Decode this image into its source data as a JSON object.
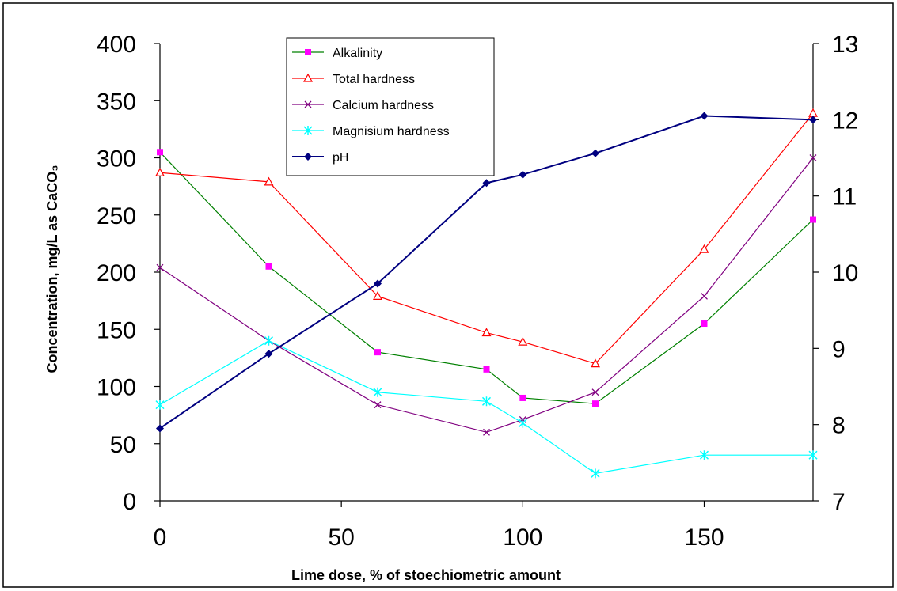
{
  "chart_data": {
    "type": "line",
    "xlabel": "Lime dose, % of stoechiometric amount",
    "ylabel": "Concentration, mg/L as CaCO₃",
    "xlim": [
      0,
      180
    ],
    "x_ticks": [
      "0",
      "50",
      "100",
      "150"
    ],
    "ylim": [
      0,
      400
    ],
    "y_ticks": [
      "0",
      "50",
      "100",
      "150",
      "200",
      "250",
      "300",
      "350",
      "400"
    ],
    "y2lim": [
      7,
      13
    ],
    "y2_ticks": [
      "7",
      "8",
      "9",
      "10",
      "11",
      "12",
      "13"
    ],
    "legend_position": "top-center",
    "grid": false,
    "series": [
      {
        "name": "Alkalinity",
        "axis": "left",
        "color": "#008000",
        "marker": "square",
        "marker_color": "#ff00ff",
        "x": [
          0,
          30,
          60,
          90,
          100,
          120,
          150,
          180
        ],
        "values": [
          305,
          205,
          130,
          115,
          90,
          85,
          155,
          246
        ]
      },
      {
        "name": "Total hardness",
        "axis": "left",
        "color": "#ff0000",
        "marker": "triangle",
        "marker_color": "#ff0000",
        "x": [
          0,
          30,
          60,
          90,
          100,
          120,
          150,
          180
        ],
        "values": [
          287,
          279,
          179,
          147,
          139,
          120,
          220,
          339
        ]
      },
      {
        "name": "Calcium hardness",
        "axis": "left",
        "color": "#800080",
        "marker": "x",
        "marker_color": "#800080",
        "x": [
          0,
          30,
          60,
          90,
          100,
          120,
          150,
          180
        ],
        "values": [
          204,
          140,
          84,
          60,
          71,
          95,
          179,
          300
        ]
      },
      {
        "name": "Magnisium hardness",
        "axis": "left",
        "color": "#00ffff",
        "marker": "asterisk",
        "marker_color": "#00ffff",
        "x": [
          0,
          30,
          60,
          90,
          100,
          120,
          150,
          180
        ],
        "values": [
          84,
          140,
          95,
          87,
          68,
          24,
          40,
          40
        ]
      },
      {
        "name": "pH",
        "axis": "right",
        "color": "#000080",
        "marker": "diamond",
        "marker_color": "#000080",
        "x": [
          0,
          30,
          60,
          90,
          100,
          120,
          150,
          180
        ],
        "values": [
          7.95,
          8.93,
          9.85,
          11.17,
          11.28,
          11.56,
          12.05,
          12.0
        ]
      }
    ]
  }
}
